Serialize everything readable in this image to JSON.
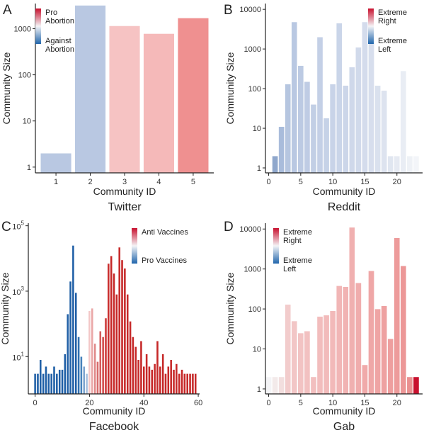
{
  "chart_data": [
    {
      "type": "bar",
      "panel_letter": "A",
      "caption": "Twitter",
      "xlabel": "Community ID",
      "ylabel": "Community Size",
      "y_scale": "log",
      "ylim": [
        0.75,
        3500
      ],
      "xlim": [
        0.4,
        5.6
      ],
      "y_ticks": [
        {
          "value": 1,
          "label": "1"
        },
        {
          "value": 10,
          "label": "10"
        },
        {
          "value": 100,
          "label": "100"
        },
        {
          "value": 1000,
          "label": "1000"
        }
      ],
      "x_ticks": [
        {
          "value": 1,
          "label": "1"
        },
        {
          "value": 2,
          "label": "2"
        },
        {
          "value": 3,
          "label": "3"
        },
        {
          "value": 4,
          "label": "4"
        },
        {
          "value": 5,
          "label": "5"
        }
      ],
      "bar_width": 0.9,
      "legend": {
        "placement": "top-left",
        "high_label": "Pro\nAbortion",
        "low_label": "Against\nAbortion",
        "high_color": "#c8102e",
        "low_color": "#2166ac"
      },
      "bars": [
        {
          "x": 1,
          "value": 2,
          "color": "#b9c8e2"
        },
        {
          "x": 2,
          "value": 3200,
          "color": "#b9c8e2"
        },
        {
          "x": 3,
          "value": 1150,
          "color": "#f6c3c3"
        },
        {
          "x": 4,
          "value": 780,
          "color": "#f5b9b9"
        },
        {
          "x": 5,
          "value": 1700,
          "color": "#ef9090"
        }
      ]
    },
    {
      "type": "bar",
      "panel_letter": "B",
      "caption": "Reddit",
      "xlabel": "Community ID",
      "ylabel": "Community Size",
      "y_scale": "log",
      "ylim": [
        0.75,
        14000
      ],
      "xlim": [
        -0.5,
        24
      ],
      "y_ticks": [
        {
          "value": 1,
          "label": "1"
        },
        {
          "value": 10,
          "label": "10"
        },
        {
          "value": 100,
          "label": "100"
        },
        {
          "value": 1000,
          "label": "1000"
        },
        {
          "value": 10000,
          "label": "10000"
        }
      ],
      "x_ticks": [
        {
          "value": 0,
          "label": "0"
        },
        {
          "value": 5,
          "label": "5"
        },
        {
          "value": 10,
          "label": "10"
        },
        {
          "value": 15,
          "label": "15"
        },
        {
          "value": 20,
          "label": "20"
        }
      ],
      "bar_width": 0.9,
      "legend": {
        "placement": "top-right",
        "high_label": "Extreme\nRight",
        "low_label": "Extreme\nLeft",
        "high_color": "#c8102e",
        "low_color": "#2166ac"
      },
      "bars": [
        {
          "x": 1,
          "value": 2,
          "color": "#8fa7cc"
        },
        {
          "x": 2,
          "value": 11,
          "color": "#a9bcdb"
        },
        {
          "x": 3,
          "value": 130,
          "color": "#b6c6e0"
        },
        {
          "x": 4,
          "value": 4800,
          "color": "#b9c8e2"
        },
        {
          "x": 5,
          "value": 380,
          "color": "#bccae3"
        },
        {
          "x": 6,
          "value": 150,
          "color": "#bfcce4"
        },
        {
          "x": 7,
          "value": 40,
          "color": "#c2cfe5"
        },
        {
          "x": 8,
          "value": 2000,
          "color": "#c4d0e6"
        },
        {
          "x": 9,
          "value": 18,
          "color": "#c6d2e7"
        },
        {
          "x": 10,
          "value": 130,
          "color": "#c8d3e8"
        },
        {
          "x": 11,
          "value": 4500,
          "color": "#cad5e9"
        },
        {
          "x": 12,
          "value": 120,
          "color": "#ccd6e9"
        },
        {
          "x": 13,
          "value": 350,
          "color": "#cfd8ea"
        },
        {
          "x": 14,
          "value": 1100,
          "color": "#d1daeb"
        },
        {
          "x": 15,
          "value": 4800,
          "color": "#d4dcec"
        },
        {
          "x": 16,
          "value": 1500,
          "color": "#d7deed"
        },
        {
          "x": 17,
          "value": 120,
          "color": "#dae1ee"
        },
        {
          "x": 18,
          "value": 90,
          "color": "#dde3ef"
        },
        {
          "x": 19,
          "value": 2,
          "color": "#e0e6f0"
        },
        {
          "x": 20,
          "value": 2,
          "color": "#e6eaf2"
        },
        {
          "x": 21,
          "value": 280,
          "color": "#e9edf4"
        },
        {
          "x": 22,
          "value": 2,
          "color": "#eef1f6"
        },
        {
          "x": 23,
          "value": 2,
          "color": "#f3f5f9"
        }
      ]
    },
    {
      "type": "bar",
      "panel_letter": "C",
      "caption": "Facebook",
      "xlabel": "Community ID",
      "ylabel": "Community Size",
      "y_scale": "log",
      "ylim": [
        0.72,
        120000
      ],
      "xlim": [
        -2.5,
        60.5
      ],
      "y_ticks": [
        {
          "value": 10,
          "base": "10",
          "exp": "1"
        },
        {
          "value": 1000,
          "base": "10",
          "exp": "3"
        },
        {
          "value": 100000,
          "base": "10",
          "exp": "5"
        }
      ],
      "x_ticks": [
        {
          "value": 0,
          "label": "0"
        },
        {
          "value": 20,
          "label": "20"
        },
        {
          "value": 40,
          "label": "40"
        },
        {
          "value": 60,
          "label": "60"
        }
      ],
      "bar_width": 0.8,
      "legend": {
        "placement": "top-right",
        "high_label": "Anti Vaccines",
        "low_label": "Pro Vaccines",
        "high_color": "#c8102e",
        "low_color": "#2166ac"
      },
      "bars": [
        {
          "x": 0,
          "value": 3,
          "color": "#1f5fa6"
        },
        {
          "x": 1,
          "value": 3,
          "color": "#1f5fa6"
        },
        {
          "x": 2,
          "value": 8,
          "color": "#1f5fa6"
        },
        {
          "x": 3,
          "value": 3,
          "color": "#1f5fa6"
        },
        {
          "x": 4,
          "value": 5,
          "color": "#1f5fa6"
        },
        {
          "x": 5,
          "value": 3,
          "color": "#1f5fa6"
        },
        {
          "x": 6,
          "value": 3,
          "color": "#1f5fa6"
        },
        {
          "x": 7,
          "value": 5,
          "color": "#1f5fa6"
        },
        {
          "x": 8,
          "value": 3,
          "color": "#1f5fa6"
        },
        {
          "x": 9,
          "value": 4,
          "color": "#1f5fa6"
        },
        {
          "x": 10,
          "value": 4,
          "color": "#1f5fa6"
        },
        {
          "x": 11,
          "value": 12,
          "color": "#1f5fa6"
        },
        {
          "x": 12,
          "value": 200,
          "color": "#1f5fa6"
        },
        {
          "x": 13,
          "value": 2000,
          "color": "#1f5fa6"
        },
        {
          "x": 14,
          "value": 25000,
          "color": "#1f5fa6"
        },
        {
          "x": 15,
          "value": 900,
          "color": "#1f5fa6"
        },
        {
          "x": 16,
          "value": 40,
          "color": "#2f6fb0"
        },
        {
          "x": 17,
          "value": 10,
          "color": "#4682bb"
        },
        {
          "x": 18,
          "value": 5,
          "color": "#7ea5cf"
        },
        {
          "x": 19,
          "value": 3,
          "color": "#a7c1de"
        },
        {
          "x": 20,
          "value": 250,
          "color": "#f3c7c7"
        },
        {
          "x": 21,
          "value": 300,
          "color": "#eaa6a6"
        },
        {
          "x": 22,
          "value": 25,
          "color": "#e08a8a"
        },
        {
          "x": 23,
          "value": 7,
          "color": "#d86c6c"
        },
        {
          "x": 24,
          "value": 60,
          "color": "#d45a5a"
        },
        {
          "x": 25,
          "value": 40,
          "color": "#d04a4a"
        },
        {
          "x": 26,
          "value": 150,
          "color": "#cd3a3a"
        },
        {
          "x": 27,
          "value": 7000,
          "color": "#c92e2e"
        },
        {
          "x": 28,
          "value": 12000,
          "color": "#c62828"
        },
        {
          "x": 29,
          "value": 3500,
          "color": "#c62828"
        },
        {
          "x": 30,
          "value": 800,
          "color": "#c62828"
        },
        {
          "x": 31,
          "value": 22000,
          "color": "#c62828"
        },
        {
          "x": 32,
          "value": 9000,
          "color": "#c62828"
        },
        {
          "x": 33,
          "value": 5000,
          "color": "#c62828"
        },
        {
          "x": 34,
          "value": 800,
          "color": "#c62828"
        },
        {
          "x": 35,
          "value": 120,
          "color": "#c62828"
        },
        {
          "x": 36,
          "value": 40,
          "color": "#c62828"
        },
        {
          "x": 37,
          "value": 20,
          "color": "#c62828"
        },
        {
          "x": 38,
          "value": 8,
          "color": "#c62828"
        },
        {
          "x": 39,
          "value": 30,
          "color": "#c62828"
        },
        {
          "x": 40,
          "value": 5,
          "color": "#c62828"
        },
        {
          "x": 41,
          "value": 12,
          "color": "#c62828"
        },
        {
          "x": 42,
          "value": 5,
          "color": "#c62828"
        },
        {
          "x": 43,
          "value": 4,
          "color": "#c62828"
        },
        {
          "x": 44,
          "value": 6,
          "color": "#c62828"
        },
        {
          "x": 45,
          "value": 30,
          "color": "#c62828"
        },
        {
          "x": 46,
          "value": 5,
          "color": "#c62828"
        },
        {
          "x": 47,
          "value": 12,
          "color": "#c62828"
        },
        {
          "x": 48,
          "value": 3,
          "color": "#c62828"
        },
        {
          "x": 49,
          "value": 5,
          "color": "#c62828"
        },
        {
          "x": 50,
          "value": 8,
          "color": "#c62828"
        },
        {
          "x": 51,
          "value": 4,
          "color": "#c62828"
        },
        {
          "x": 52,
          "value": 6,
          "color": "#c62828"
        },
        {
          "x": 53,
          "value": 3,
          "color": "#c62828"
        },
        {
          "x": 54,
          "value": 4,
          "color": "#c62828"
        },
        {
          "x": 55,
          "value": 3,
          "color": "#c62828"
        },
        {
          "x": 56,
          "value": 3,
          "color": "#c62828"
        },
        {
          "x": 57,
          "value": 3,
          "color": "#c62828"
        },
        {
          "x": 58,
          "value": 3,
          "color": "#c62828"
        },
        {
          "x": 59,
          "value": 3,
          "color": "#c62828"
        }
      ]
    },
    {
      "type": "bar",
      "panel_letter": "D",
      "caption": "Gab",
      "xlabel": "Community ID",
      "ylabel": "Community Size",
      "y_scale": "log",
      "ylim": [
        0.75,
        14000
      ],
      "xlim": [
        -0.5,
        24
      ],
      "y_ticks": [
        {
          "value": 1,
          "label": "1"
        },
        {
          "value": 10,
          "label": "10"
        },
        {
          "value": 100,
          "label": "100"
        },
        {
          "value": 1000,
          "label": "1000"
        },
        {
          "value": 10000,
          "label": "10000"
        }
      ],
      "x_ticks": [
        {
          "value": 0,
          "label": "0"
        },
        {
          "value": 5,
          "label": "5"
        },
        {
          "value": 10,
          "label": "10"
        },
        {
          "value": 15,
          "label": "15"
        },
        {
          "value": 20,
          "label": "20"
        }
      ],
      "bar_width": 0.9,
      "legend": {
        "placement": "top-left",
        "high_label": "Extreme\nRight",
        "low_label": "Extreme\nLeft",
        "high_color": "#c8102e",
        "low_color": "#2166ac"
      },
      "bars": [
        {
          "x": 0,
          "value": 2,
          "color": "#f4f4f6"
        },
        {
          "x": 1,
          "value": 2,
          "color": "#f3eaea"
        },
        {
          "x": 2,
          "value": 2,
          "color": "#f2dede"
        },
        {
          "x": 3,
          "value": 130,
          "color": "#f2cccc"
        },
        {
          "x": 4,
          "value": 50,
          "color": "#f2c6c6"
        },
        {
          "x": 5,
          "value": 25,
          "color": "#f2c3c3"
        },
        {
          "x": 6,
          "value": 28,
          "color": "#f2c1c1"
        },
        {
          "x": 7,
          "value": 2,
          "color": "#f2bfbf"
        },
        {
          "x": 8,
          "value": 65,
          "color": "#f2bdbd"
        },
        {
          "x": 9,
          "value": 70,
          "color": "#f2bbbb"
        },
        {
          "x": 10,
          "value": 90,
          "color": "#f2b9b9"
        },
        {
          "x": 11,
          "value": 380,
          "color": "#f1b6b6"
        },
        {
          "x": 12,
          "value": 360,
          "color": "#f1b3b3"
        },
        {
          "x": 13,
          "value": 11000,
          "color": "#f0b0b0"
        },
        {
          "x": 14,
          "value": 450,
          "color": "#f0adad"
        },
        {
          "x": 15,
          "value": 4,
          "color": "#f0aaaa"
        },
        {
          "x": 16,
          "value": 900,
          "color": "#efa7a7"
        },
        {
          "x": 17,
          "value": 100,
          "color": "#efa4a4"
        },
        {
          "x": 18,
          "value": 120,
          "color": "#eea1a1"
        },
        {
          "x": 19,
          "value": 18,
          "color": "#ee9e9e"
        },
        {
          "x": 20,
          "value": 6000,
          "color": "#ed9b9b"
        },
        {
          "x": 21,
          "value": 1200,
          "color": "#ec9797"
        },
        {
          "x": 22,
          "value": 2,
          "color": "#ea9090"
        },
        {
          "x": 23,
          "value": 2,
          "color": "#c8102e"
        }
      ]
    }
  ]
}
